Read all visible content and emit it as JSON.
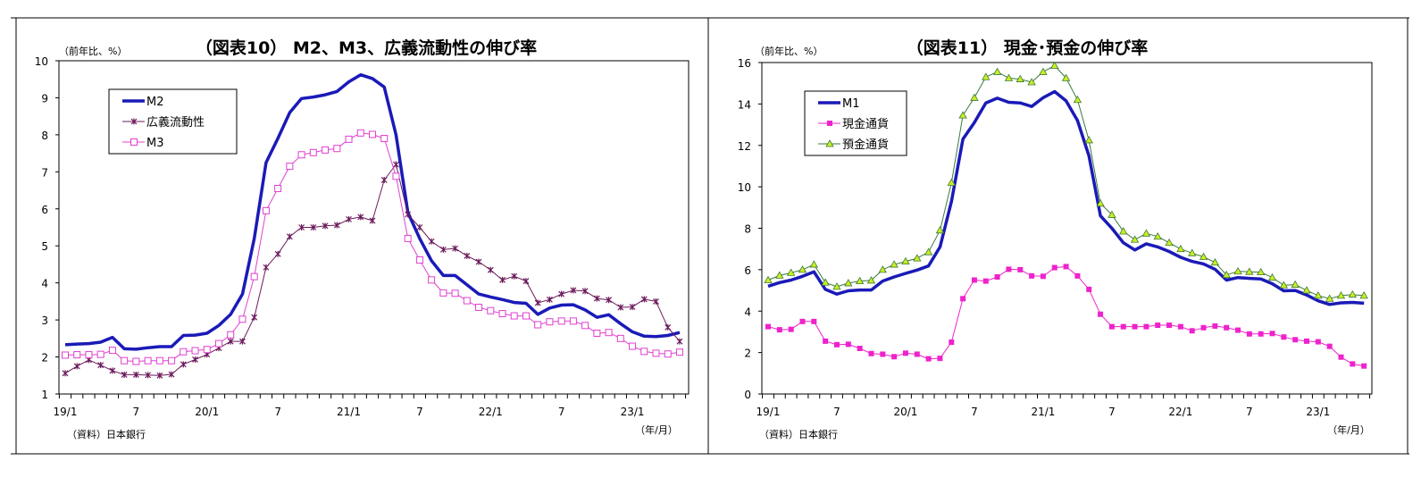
{
  "chart_data": [
    {
      "type": "line",
      "title": "（図表10） M2、M3、広義流動性の伸び率",
      "ylabel": "（前年比、%）",
      "xlabel": "（年/月）",
      "source": "（資料）日本銀行",
      "ylim": [
        1,
        10
      ],
      "yticks": [
        1,
        2,
        3,
        4,
        5,
        6,
        7,
        8,
        9,
        10
      ],
      "x_range": [
        "2019/1",
        "2023/5"
      ],
      "xtick_labels": [
        "19/1",
        "7",
        "20/1",
        "7",
        "21/1",
        "7",
        "22/1",
        "7",
        "23/1"
      ],
      "legend": "top-left",
      "grid": false,
      "series": [
        {
          "name": "M2",
          "color": "#1a1ab8",
          "marker": "none",
          "values": [
            2.33,
            2.35,
            2.36,
            2.4,
            2.53,
            2.22,
            2.21,
            2.25,
            2.28,
            2.28,
            2.58,
            2.59,
            2.64,
            2.85,
            3.15,
            3.7,
            5.2,
            7.25,
            7.9,
            8.6,
            8.98,
            9.02,
            9.08,
            9.17,
            9.43,
            9.62,
            9.52,
            9.29,
            8.0,
            5.9,
            5.2,
            4.6,
            4.2,
            4.2,
            3.95,
            3.7,
            3.62,
            3.55,
            3.47,
            3.45,
            3.15,
            3.32,
            3.4,
            3.41,
            3.27,
            3.07,
            3.14,
            2.9,
            2.68,
            2.56,
            2.55,
            2.58,
            2.66
          ]
        },
        {
          "name": "広義流動性",
          "color": "#6b1a5a",
          "marker": "star",
          "values": [
            1.56,
            1.75,
            1.92,
            1.78,
            1.63,
            1.52,
            1.52,
            1.51,
            1.5,
            1.53,
            1.8,
            1.93,
            2.07,
            2.24,
            2.42,
            2.42,
            3.07,
            4.42,
            4.78,
            5.25,
            5.5,
            5.5,
            5.54,
            5.56,
            5.72,
            5.78,
            5.68,
            6.78,
            7.2,
            5.85,
            5.5,
            5.12,
            4.9,
            4.93,
            4.73,
            4.57,
            4.35,
            4.08,
            4.18,
            4.05,
            3.46,
            3.55,
            3.7,
            3.8,
            3.78,
            3.58,
            3.54,
            3.34,
            3.35,
            3.56,
            3.5,
            2.8,
            2.42
          ]
        },
        {
          "name": "M3",
          "color": "#e040d0",
          "marker": "open-square",
          "values": [
            2.05,
            2.06,
            2.06,
            2.07,
            2.18,
            1.9,
            1.88,
            1.9,
            1.9,
            1.9,
            2.14,
            2.17,
            2.2,
            2.36,
            2.6,
            3.02,
            4.17,
            5.95,
            6.55,
            7.15,
            7.46,
            7.52,
            7.59,
            7.63,
            7.88,
            8.05,
            8.01,
            7.9,
            6.88,
            5.2,
            4.62,
            4.08,
            3.73,
            3.72,
            3.52,
            3.34,
            3.25,
            3.17,
            3.11,
            3.11,
            2.87,
            2.95,
            2.97,
            2.97,
            2.85,
            2.64,
            2.66,
            2.5,
            2.29,
            2.15,
            2.1,
            2.08,
            2.13
          ]
        }
      ]
    },
    {
      "type": "line",
      "title": "（図表11） 現金･預金の伸び率",
      "ylabel": "（前年比、%）",
      "xlabel": "（年/月）",
      "source": "（資料）日本銀行",
      "ylim": [
        0,
        16
      ],
      "yticks": [
        0,
        2,
        4,
        6,
        8,
        10,
        12,
        14,
        16
      ],
      "x_range": [
        "2019/1",
        "2023/5"
      ],
      "xtick_labels": [
        "19/1",
        "7",
        "20/1",
        "7",
        "21/1",
        "7",
        "22/1",
        "7",
        "23/1"
      ],
      "legend": "top-left",
      "grid": false,
      "series": [
        {
          "name": "M1",
          "color": "#1a1ab8",
          "marker": "none",
          "values": [
            5.2,
            5.38,
            5.5,
            5.68,
            5.9,
            5.05,
            4.82,
            4.98,
            5.02,
            5.02,
            5.45,
            5.65,
            5.82,
            5.98,
            6.18,
            7.1,
            9.3,
            12.3,
            13.1,
            14.05,
            14.28,
            14.08,
            14.05,
            13.88,
            14.3,
            14.6,
            14.15,
            13.2,
            11.5,
            8.6,
            8.0,
            7.3,
            6.95,
            7.25,
            7.1,
            6.88,
            6.6,
            6.4,
            6.28,
            6.02,
            5.5,
            5.62,
            5.58,
            5.55,
            5.32,
            4.98,
            5.0,
            4.78,
            4.5,
            4.32,
            4.4,
            4.42,
            4.38
          ]
        },
        {
          "name": "現金通貨",
          "color": "#ee22cc",
          "marker": "filled-square",
          "values": [
            3.25,
            3.1,
            3.12,
            3.5,
            3.5,
            2.55,
            2.38,
            2.4,
            2.2,
            1.95,
            1.92,
            1.8,
            1.97,
            1.92,
            1.7,
            1.72,
            2.5,
            4.6,
            5.5,
            5.45,
            5.65,
            6.02,
            6.0,
            5.7,
            5.68,
            6.1,
            6.15,
            5.7,
            5.05,
            3.85,
            3.25,
            3.25,
            3.25,
            3.25,
            3.32,
            3.32,
            3.25,
            3.05,
            3.2,
            3.28,
            3.2,
            3.08,
            2.9,
            2.9,
            2.92,
            2.75,
            2.62,
            2.55,
            2.52,
            2.3,
            1.78,
            1.45,
            1.35
          ]
        },
        {
          "name": "預金通貨",
          "color": "#3a7a3a",
          "marker": "triangle",
          "marker_fill": "#ccee22",
          "values": [
            5.5,
            5.72,
            5.85,
            6.0,
            6.25,
            5.38,
            5.18,
            5.35,
            5.45,
            5.48,
            6.0,
            6.25,
            6.4,
            6.55,
            6.85,
            7.9,
            10.2,
            13.45,
            14.3,
            15.3,
            15.55,
            15.25,
            15.2,
            15.05,
            15.55,
            15.85,
            15.25,
            14.2,
            12.25,
            9.2,
            8.65,
            7.85,
            7.45,
            7.75,
            7.6,
            7.3,
            7.0,
            6.8,
            6.62,
            6.35,
            5.75,
            5.92,
            5.9,
            5.88,
            5.62,
            5.25,
            5.28,
            5.0,
            4.75,
            4.6,
            4.75,
            4.8,
            4.75
          ]
        }
      ]
    }
  ]
}
